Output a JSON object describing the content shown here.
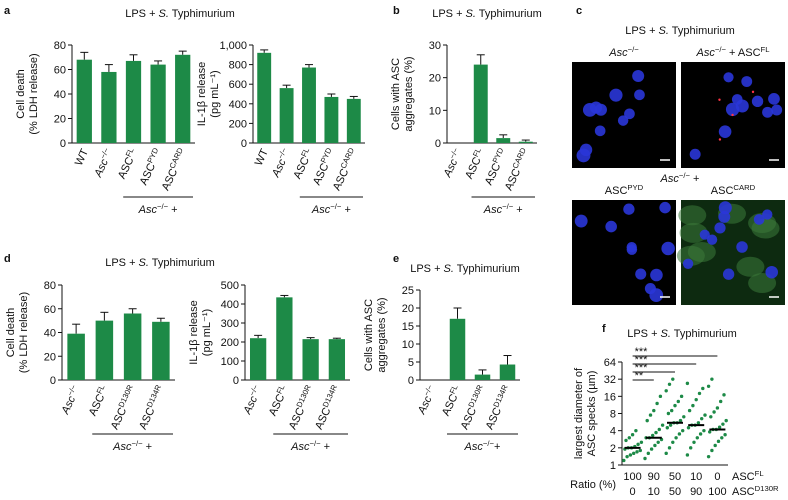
{
  "chart_data": [
    {
      "type": "bar",
      "panel": "a",
      "title": [
        "LPS + ",
        {
          "text": "S.",
          "style": "italic"
        },
        " Typhimurium"
      ],
      "ylabel": [
        "Cell death",
        "(% LDH release)"
      ],
      "categories": [
        [
          "WT"
        ],
        [
          {
            "text": "Asc",
            "style": "italic"
          },
          {
            "text": "−/−",
            "style": "sup"
          }
        ],
        [
          "ASC",
          {
            "text": "FL",
            "style": "sup"
          }
        ],
        [
          "ASC",
          {
            "text": "PYD",
            "style": "sup"
          }
        ],
        [
          "ASC",
          {
            "text": "CARD",
            "style": "sup"
          }
        ]
      ],
      "values": [
        68,
        58,
        67,
        64,
        72
      ],
      "errors": [
        6,
        6,
        5,
        3,
        3
      ],
      "group_label": [
        {
          "text": "Asc",
          "style": "italic"
        },
        {
          "text": "−/−",
          "style": "sup"
        },
        " +"
      ],
      "group_start": 2,
      "color": "#1d8a47",
      "ylim": [
        0,
        80
      ],
      "yticks": [
        0,
        20,
        40,
        60,
        80
      ]
    },
    {
      "type": "bar",
      "ylabel": [
        "IL-1β release",
        "(pg mL⁻¹)"
      ],
      "categories": [
        [
          "WT"
        ],
        [
          {
            "text": "Asc",
            "style": "italic"
          },
          {
            "text": "−/−",
            "style": "sup"
          }
        ],
        [
          "ASC",
          {
            "text": "FL",
            "style": "sup"
          }
        ],
        [
          "ASC",
          {
            "text": "PYD",
            "style": "sup"
          }
        ],
        [
          "ASC",
          {
            "text": "CARD",
            "style": "sup"
          }
        ]
      ],
      "values": [
        920,
        560,
        770,
        470,
        450
      ],
      "errors": [
        30,
        30,
        30,
        30,
        25
      ],
      "group_label": [
        {
          "text": "Asc",
          "style": "italic"
        },
        {
          "text": "−/−",
          "style": "sup"
        },
        " +"
      ],
      "group_start": 2,
      "color": "#1d8a47",
      "ylim": [
        0,
        1000
      ],
      "yticks": [
        0,
        {
          "value": 200,
          "label": "200"
        },
        400,
        600,
        800,
        {
          "value": 1000,
          "label": "1,000"
        }
      ]
    },
    {
      "type": "bar",
      "panel": "b",
      "title": [
        "LPS + ",
        {
          "text": "S.",
          "style": "italic"
        },
        " Typhimurium"
      ],
      "ylabel": [
        "Cells with ASC",
        "aggregates (%)"
      ],
      "categories": [
        [
          {
            "text": "Asc",
            "style": "italic"
          },
          {
            "text": "−/−",
            "style": "sup"
          }
        ],
        [
          "ASC",
          {
            "text": "FL",
            "style": "sup"
          }
        ],
        [
          "ASC",
          {
            "text": "PYD",
            "style": "sup"
          }
        ],
        [
          "ASC",
          {
            "text": "CARD",
            "style": "sup"
          }
        ]
      ],
      "values": [
        0,
        24,
        1.5,
        0.4
      ],
      "errors": [
        0,
        3,
        1,
        0.5
      ],
      "group_label": [
        {
          "text": "Asc",
          "style": "italic"
        },
        {
          "text": "−/−",
          "style": "sup"
        },
        " +"
      ],
      "group_start": 1,
      "color": "#1d8a47",
      "ylim": [
        0,
        30
      ],
      "yticks": [
        0,
        10,
        20,
        30
      ]
    },
    {
      "type": "image",
      "panel": "c",
      "title": [
        "LPS + ",
        {
          "text": "S.",
          "style": "italic"
        },
        " Typhimurium"
      ],
      "group_label": [
        {
          "text": "Asc",
          "style": "italic"
        },
        {
          "text": "−/−",
          "style": "sup"
        },
        " +"
      ],
      "images": [
        {
          "label": [
            {
              "text": "Asc",
              "style": "italic"
            },
            {
              "text": "−/−",
              "style": "sup"
            }
          ]
        },
        {
          "label": [
            {
              "text": "Asc",
              "style": "italic"
            },
            {
              "text": "−/−",
              "style": "sup"
            },
            " + ASC",
            {
              "text": "FL",
              "style": "sup"
            }
          ]
        },
        {
          "label": [
            "ASC",
            {
              "text": "PYD",
              "style": "sup"
            }
          ]
        },
        {
          "label": [
            "ASC",
            {
              "text": "CARD",
              "style": "sup"
            }
          ]
        }
      ]
    },
    {
      "type": "bar",
      "panel": "d",
      "title": [
        "LPS + ",
        {
          "text": "S.",
          "style": "italic"
        },
        " Typhimurium"
      ],
      "ylabel": [
        "Cell death",
        "(% LDH release)"
      ],
      "categories": [
        [
          {
            "text": "Asc",
            "style": "italic"
          },
          {
            "text": "−/−",
            "style": "sup"
          }
        ],
        [
          "ASC",
          {
            "text": "FL",
            "style": "sup"
          }
        ],
        [
          "ASC",
          {
            "text": "D130R",
            "style": "sup"
          }
        ],
        [
          "ASC",
          {
            "text": "D134R",
            "style": "sup"
          }
        ]
      ],
      "values": [
        39,
        50,
        56,
        49
      ],
      "errors": [
        8,
        7,
        4,
        3
      ],
      "group_label": [
        {
          "text": "Asc",
          "style": "italic"
        },
        {
          "text": "−/−",
          "style": "sup"
        },
        " +"
      ],
      "group_start": 1,
      "color": "#1d8a47",
      "ylim": [
        0,
        80
      ],
      "yticks": [
        0,
        20,
        40,
        60,
        80
      ]
    },
    {
      "type": "bar",
      "ylabel": [
        "IL-1β release",
        "(pg mL⁻¹)"
      ],
      "categories": [
        [
          {
            "text": "Asc",
            "style": "italic"
          },
          {
            "text": "−/−",
            "style": "sup"
          }
        ],
        [
          "ASC",
          {
            "text": "FL",
            "style": "sup"
          }
        ],
        [
          "ASC",
          {
            "text": "D130R",
            "style": "sup"
          }
        ],
        [
          "ASC",
          {
            "text": "D134R",
            "style": "sup"
          }
        ]
      ],
      "values": [
        220,
        435,
        215,
        215
      ],
      "errors": [
        15,
        10,
        8,
        5
      ],
      "group_label": [
        {
          "text": "Asc",
          "style": "italic"
        },
        {
          "text": "−/−",
          "style": "sup"
        },
        " +"
      ],
      "group_start": 1,
      "color": "#1d8a47",
      "ylim": [
        0,
        500
      ],
      "yticks": [
        0,
        100,
        200,
        300,
        400,
        500
      ]
    },
    {
      "type": "bar",
      "panel": "e",
      "title": [
        "LPS + ",
        {
          "text": "S.",
          "style": "italic"
        },
        " Typhimurium"
      ],
      "ylabel": [
        "Cells with ASC",
        "aggregates (%)"
      ],
      "categories": [
        [
          {
            "text": "Asc",
            "style": "italic"
          },
          {
            "text": "−/−",
            "style": "sup"
          }
        ],
        [
          "ASC",
          {
            "text": "FL",
            "style": "sup"
          }
        ],
        [
          "ASC",
          {
            "text": "D130R",
            "style": "sup"
          }
        ],
        [
          "ASC",
          {
            "text": "D134R",
            "style": "sup"
          }
        ]
      ],
      "values": [
        0,
        17,
        1.5,
        4.3
      ],
      "errors": [
        0,
        3,
        1.3,
        2.5
      ],
      "group_label": [
        {
          "text": "Asc",
          "style": "italic"
        },
        {
          "text": "−/−",
          "style": "sup"
        },
        "+"
      ],
      "group_start": 1,
      "color": "#1d8a47",
      "ylim": [
        0,
        25
      ],
      "yticks": [
        0,
        5,
        10,
        15,
        20,
        25
      ]
    },
    {
      "type": "dot",
      "panel": "f",
      "title": [
        "LPS + ",
        {
          "text": "S.",
          "style": "italic"
        },
        " Typhimurium"
      ],
      "ylabel": [
        "largest diameter of",
        "ASC specks (µm)"
      ],
      "yscale": "log",
      "ylim": [
        1,
        64
      ],
      "yticks": [
        1,
        2,
        4,
        8,
        16,
        32,
        64
      ],
      "color": "#1d8a47",
      "groups": [
        {
          "values": [
            1.2,
            1.4,
            1.5,
            1.6,
            1.7,
            1.8,
            1.9,
            2,
            2,
            2.1,
            2.3,
            2.5,
            2.7,
            3,
            3.4,
            4
          ],
          "median": 2
        },
        {
          "values": [
            1.3,
            1.6,
            1.9,
            2.2,
            2.5,
            2.8,
            3,
            3,
            3.3,
            3.7,
            4.2,
            5,
            6,
            7.5,
            9,
            12,
            16
          ],
          "median": 3
        },
        {
          "values": [
            1.6,
            2,
            2.5,
            3,
            3.5,
            4,
            4.5,
            5,
            5.5,
            5.5,
            6,
            7,
            8,
            9,
            11,
            13,
            16,
            20,
            26,
            32
          ],
          "median": 5.5
        },
        {
          "values": [
            1.5,
            2,
            2.5,
            3,
            3.5,
            4,
            4.5,
            5,
            5,
            5.5,
            6.5,
            7.5,
            9,
            11,
            14,
            18,
            22,
            27
          ],
          "median": 5
        },
        {
          "values": [
            1.4,
            1.8,
            2.2,
            2.6,
            3,
            3.4,
            3.8,
            4.2,
            4.2,
            4.6,
            5.2,
            6,
            7,
            8.5,
            10,
            13,
            17,
            24,
            32
          ],
          "median": 4.2
        }
      ],
      "significance": [
        {
          "label": "**",
          "groups": [
            0,
            1
          ]
        },
        {
          "label": "***",
          "groups": [
            0,
            2
          ]
        },
        {
          "label": "***",
          "groups": [
            0,
            3
          ]
        },
        {
          "label": "***",
          "groups": [
            0,
            4
          ]
        }
      ],
      "xlabel": "Ratio (%)",
      "ratio_rows": [
        {
          "name": [
            "ASC",
            {
              "text": "FL",
              "style": "sup"
            }
          ],
          "values": [
            100,
            90,
            50,
            10,
            0
          ]
        },
        {
          "name": [
            "ASC",
            {
              "text": "D130R",
              "style": "sup"
            }
          ],
          "values": [
            0,
            10,
            50,
            90,
            100
          ]
        }
      ]
    }
  ]
}
